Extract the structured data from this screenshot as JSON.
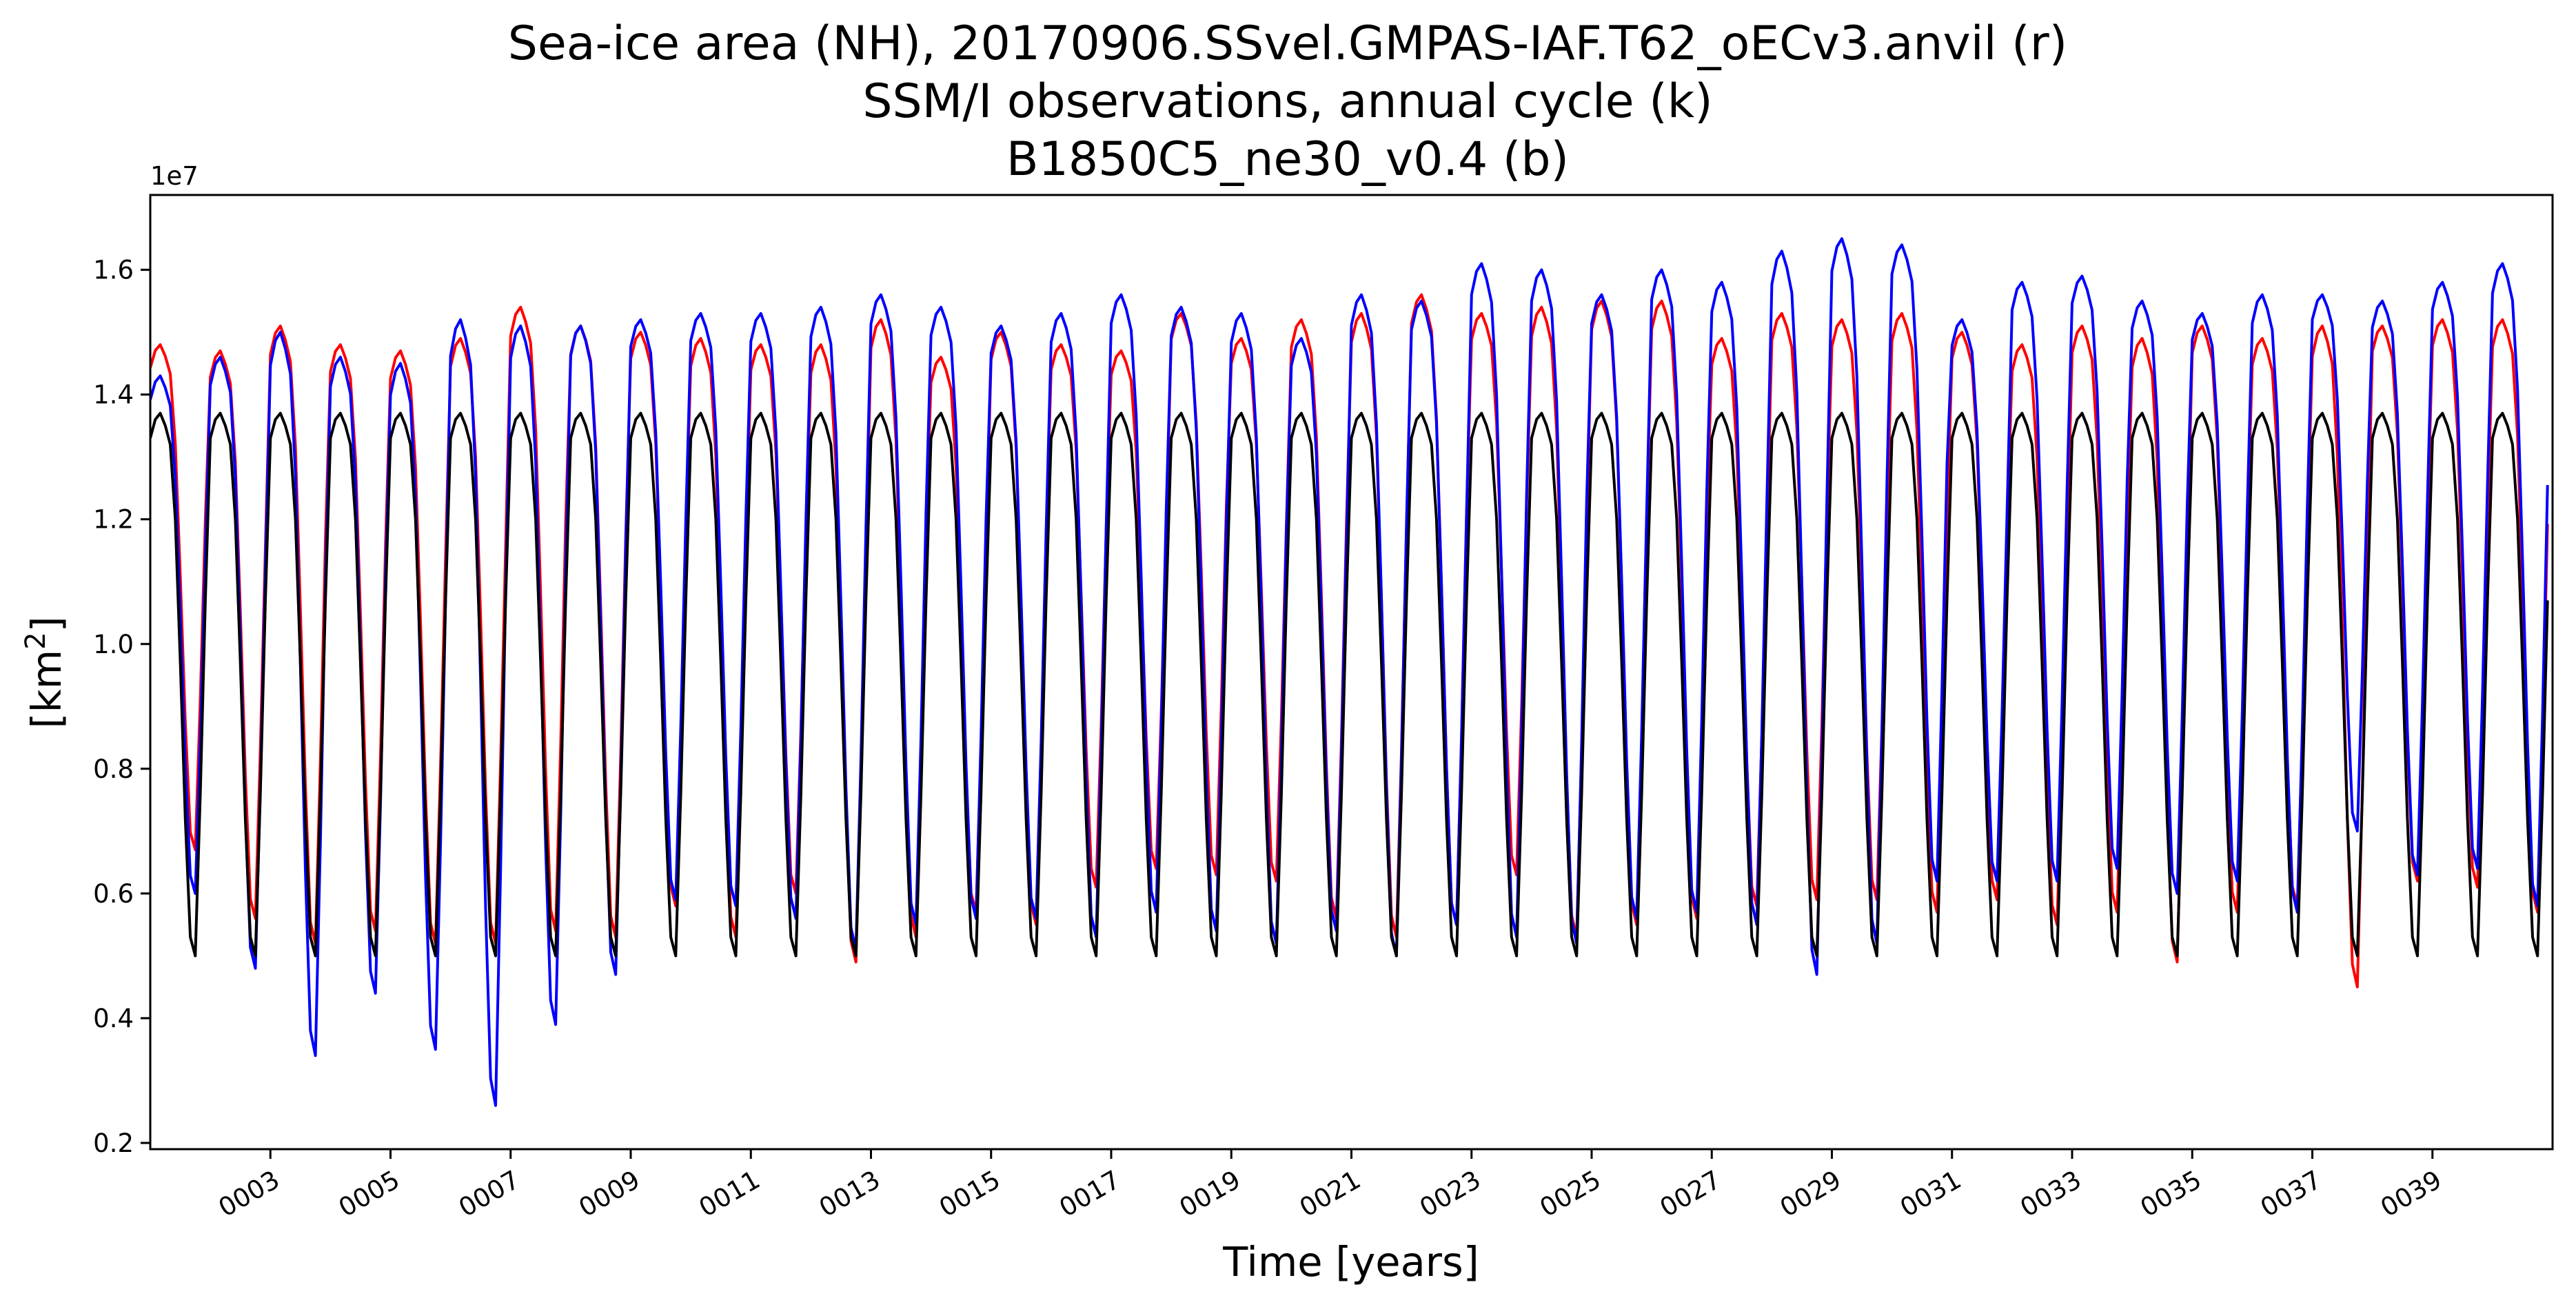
{
  "chart_data": {
    "type": "line",
    "title_lines": [
      "Sea-ice area (NH), 20170906.SSvel.GMPAS-IAF.T62_oECv3.anvil (r)",
      "SSM/I observations, annual cycle (k)",
      "B1850C5_ne30_v0.4 (b)"
    ],
    "xlabel": "Time [years]",
    "ylabel_main": "[km",
    "ylabel_sup": "2",
    "ylabel_end": "]",
    "offset_text": "1e7",
    "ylim": [
      0.19,
      1.72
    ],
    "xlim": [
      1.0,
      41.0
    ],
    "y_ticks": [
      {
        "value": 0.2,
        "label": "0.2"
      },
      {
        "value": 0.4,
        "label": "0.4"
      },
      {
        "value": 0.6,
        "label": "0.6"
      },
      {
        "value": 0.8,
        "label": "0.8"
      },
      {
        "value": 1.0,
        "label": "1.0"
      },
      {
        "value": 1.2,
        "label": "1.2"
      },
      {
        "value": 1.4,
        "label": "1.4"
      },
      {
        "value": 1.6,
        "label": "1.6"
      }
    ],
    "x_ticks": [
      {
        "value": 3,
        "label": "0003"
      },
      {
        "value": 5,
        "label": "0005"
      },
      {
        "value": 7,
        "label": "0007"
      },
      {
        "value": 9,
        "label": "0009"
      },
      {
        "value": 11,
        "label": "0011"
      },
      {
        "value": 13,
        "label": "0013"
      },
      {
        "value": 15,
        "label": "0015"
      },
      {
        "value": 17,
        "label": "0017"
      },
      {
        "value": 19,
        "label": "0019"
      },
      {
        "value": 21,
        "label": "0021"
      },
      {
        "value": 23,
        "label": "0023"
      },
      {
        "value": 25,
        "label": "0025"
      },
      {
        "value": 27,
        "label": "0027"
      },
      {
        "value": 29,
        "label": "0029"
      },
      {
        "value": 31,
        "label": "0031"
      },
      {
        "value": 33,
        "label": "0033"
      },
      {
        "value": 35,
        "label": "0035"
      },
      {
        "value": 37,
        "label": "0037"
      },
      {
        "value": 39,
        "label": "0039"
      }
    ],
    "observations_cycle": [
      1.33,
      1.36,
      1.37,
      1.35,
      1.32,
      1.2,
      0.97,
      0.72,
      0.53,
      0.5,
      0.76,
      1.07
    ],
    "series": [
      {
        "key": "r",
        "color": "#ff0000",
        "peaks": [
          1.48,
          1.47,
          1.51,
          1.48,
          1.47,
          1.49,
          1.54,
          1.51,
          1.5,
          1.49,
          1.48,
          1.48,
          1.52,
          1.46,
          1.5,
          1.48,
          1.47,
          1.53,
          1.49,
          1.52,
          1.53,
          1.56,
          1.53,
          1.54,
          1.55,
          1.55,
          1.49,
          1.53,
          1.52,
          1.53,
          1.5,
          1.48,
          1.51,
          1.49,
          1.51,
          1.49,
          1.51,
          1.51,
          1.52,
          1.52
        ],
        "troughs": [
          0.67,
          0.56,
          0.52,
          0.54,
          0.52,
          0.52,
          0.54,
          0.53,
          0.58,
          0.53,
          0.6,
          0.49,
          0.53,
          0.57,
          0.55,
          0.61,
          0.64,
          0.63,
          0.62,
          0.56,
          0.53,
          0.55,
          0.63,
          0.53,
          0.55,
          0.56,
          0.58,
          0.59,
          0.59,
          0.57,
          0.59,
          0.55,
          0.57,
          0.49,
          0.57,
          0.58,
          0.45,
          0.62,
          0.61,
          0.57
        ]
      },
      {
        "key": "b",
        "color": "#0000ff",
        "peaks": [
          1.43,
          1.46,
          1.5,
          1.46,
          1.45,
          1.52,
          1.51,
          1.51,
          1.52,
          1.53,
          1.53,
          1.54,
          1.56,
          1.54,
          1.51,
          1.53,
          1.56,
          1.54,
          1.53,
          1.49,
          1.56,
          1.55,
          1.61,
          1.6,
          1.56,
          1.6,
          1.58,
          1.63,
          1.65,
          1.64,
          1.52,
          1.58,
          1.59,
          1.55,
          1.53,
          1.56,
          1.56,
          1.55,
          1.58,
          1.61
        ],
        "troughs": [
          0.6,
          0.48,
          0.34,
          0.44,
          0.35,
          0.26,
          0.39,
          0.47,
          0.59,
          0.58,
          0.56,
          0.51,
          0.55,
          0.56,
          0.56,
          0.53,
          0.57,
          0.54,
          0.52,
          0.54,
          0.5,
          0.55,
          0.53,
          0.52,
          0.56,
          0.57,
          0.55,
          0.47,
          0.52,
          0.62,
          0.62,
          0.62,
          0.64,
          0.6,
          0.62,
          0.57,
          0.7,
          0.63,
          0.64,
          0.58
        ]
      },
      {
        "key": "k",
        "color": "#000000",
        "cycle_ref": "observations_cycle"
      }
    ]
  }
}
